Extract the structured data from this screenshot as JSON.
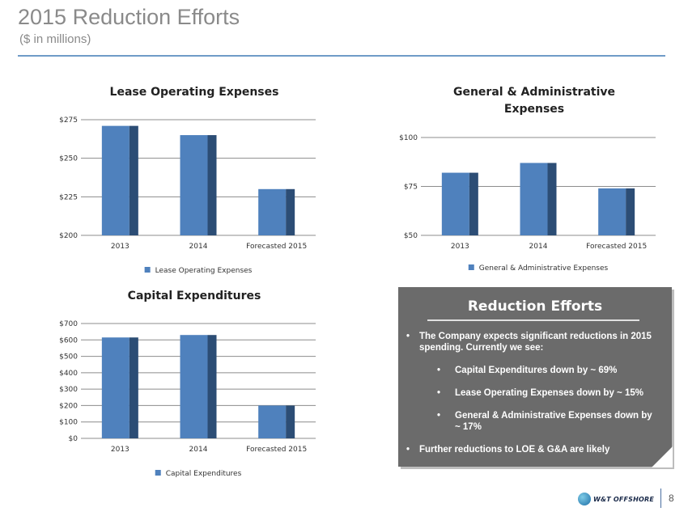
{
  "slide": {
    "title": "2015 Reduction Efforts",
    "subtitle": "($ in millions)",
    "page_number": "8"
  },
  "logo": {
    "text": "W&T OFFSHORE"
  },
  "colors": {
    "bar_front": "#4f81bd",
    "bar_side": "#2c4d75",
    "rule": "#6f9bc7",
    "panel": "#6b6b6b"
  },
  "chart_data": [
    {
      "id": "loe",
      "type": "bar",
      "title": "Lease Operating Expenses",
      "categories": [
        "2013",
        "2014",
        "Forecasted 2015"
      ],
      "series": [
        {
          "name": "Lease Operating Expenses",
          "values": [
            271,
            265,
            230
          ]
        }
      ],
      "ylim": [
        200,
        275
      ],
      "yticks": [
        200,
        225,
        250,
        275
      ],
      "ytick_labels": [
        "$200",
        "$225",
        "$250",
        "$275"
      ],
      "legend": "bottom"
    },
    {
      "id": "ga",
      "type": "bar",
      "title": "General & Administrative Expenses",
      "categories": [
        "2013",
        "2014",
        "Forecasted 2015"
      ],
      "series": [
        {
          "name": "General & Administrative Expenses",
          "values": [
            82,
            87,
            74
          ]
        }
      ],
      "ylim": [
        50,
        100
      ],
      "yticks": [
        50,
        75,
        100
      ],
      "ytick_labels": [
        "$50",
        "$75",
        "$100"
      ],
      "legend": "bottom"
    },
    {
      "id": "capex",
      "type": "bar",
      "title": "Capital Expenditures",
      "categories": [
        "2013",
        "2014",
        "Forecasted 2015"
      ],
      "series": [
        {
          "name": "Capital Expenditures",
          "values": [
            615,
            630,
            200
          ]
        }
      ],
      "ylim": [
        0,
        700
      ],
      "yticks": [
        0,
        100,
        200,
        300,
        400,
        500,
        600,
        700
      ],
      "ytick_labels": [
        "$0",
        "$100",
        "$200",
        "$300",
        "$400",
        "$500",
        "$600",
        "$700"
      ],
      "legend": "bottom"
    }
  ],
  "panel": {
    "title": "Reduction Efforts",
    "intro": "The Company expects significant reductions in 2015 spending. Currently we see:",
    "items": [
      "Capital Expenditures down by ~ 69%",
      "Lease Operating Expenses down by ~ 15%",
      "General & Administrative Expenses down by ~ 17%"
    ],
    "closing": "Further reductions to LOE & G&A are likely"
  }
}
